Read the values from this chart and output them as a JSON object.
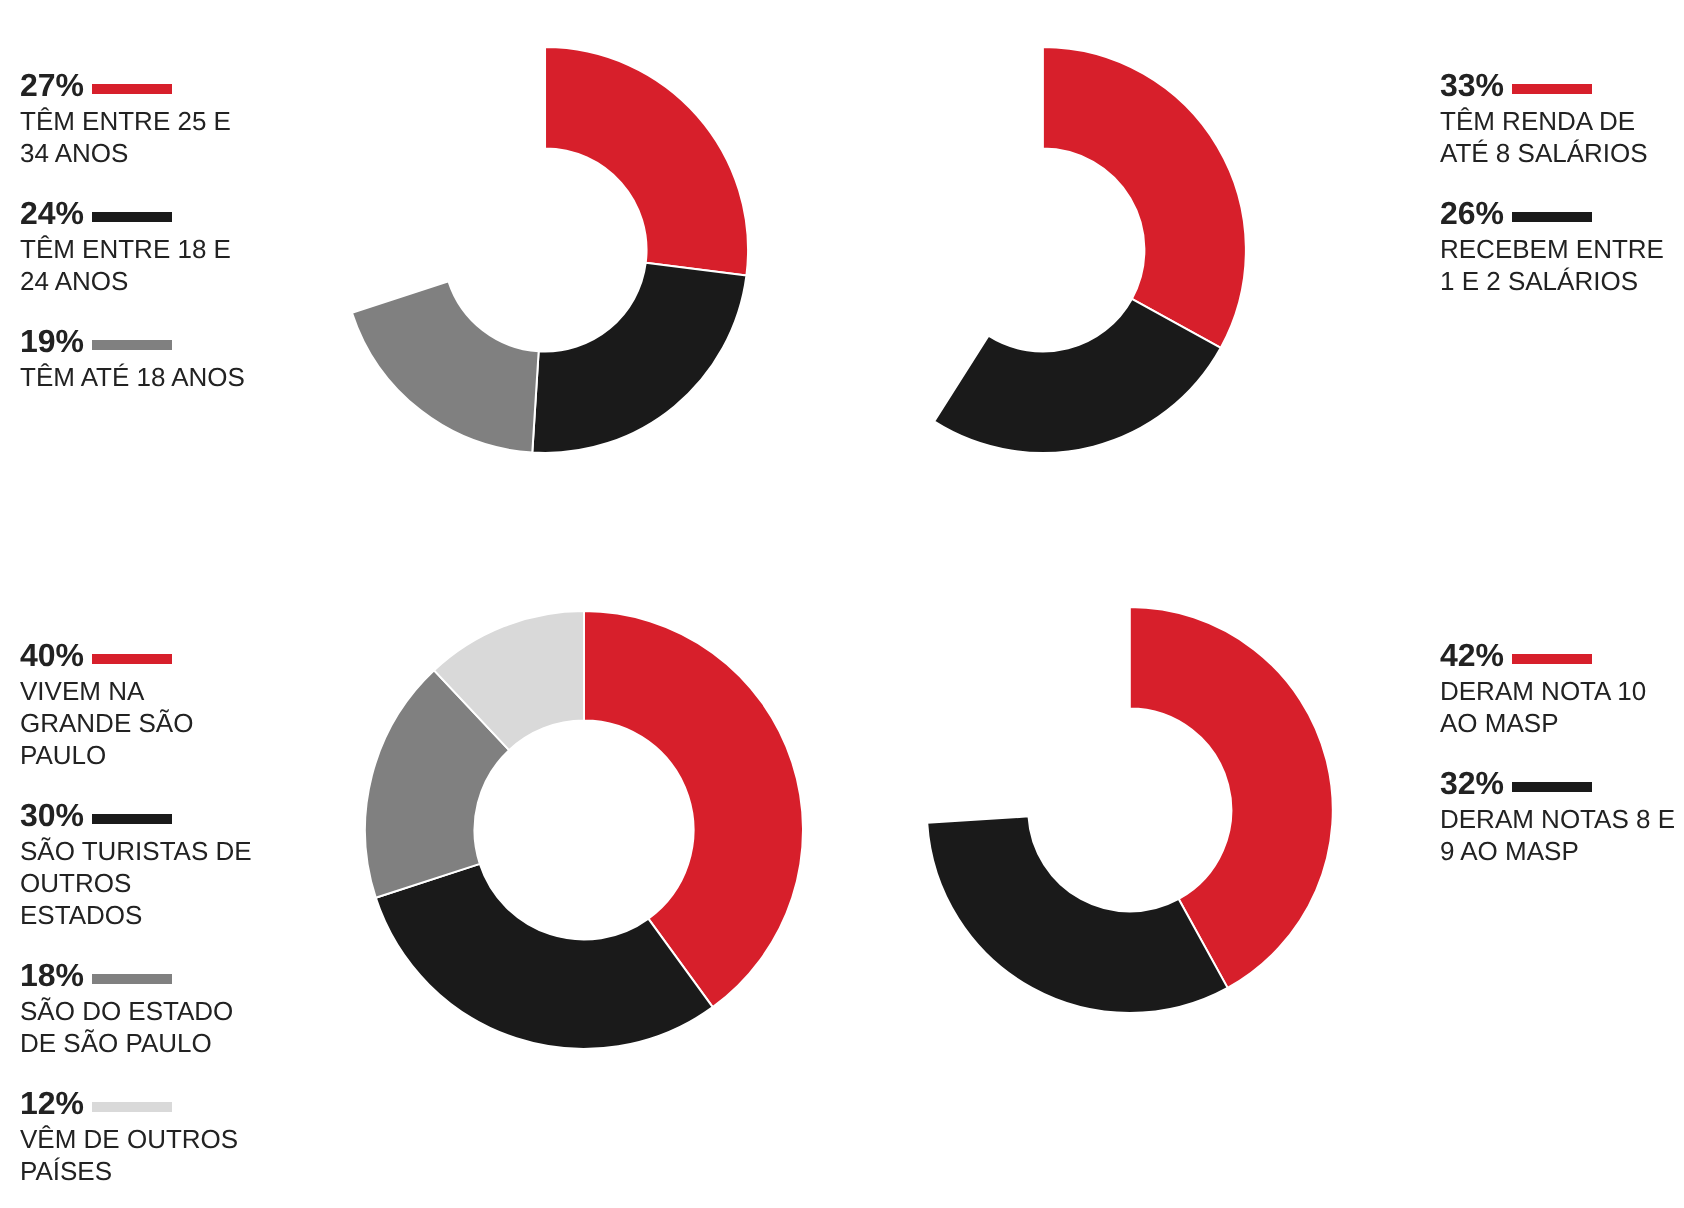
{
  "chart_data": [
    {
      "type": "donut",
      "categories": [
        "TÊM ENTRE 25 E 34 ANOS",
        "TÊM ENTRE 18 E 24 ANOS",
        "TÊM ATÉ 18 ANOS"
      ],
      "values": [
        27,
        24,
        19
      ],
      "value_labels": [
        "27%",
        "24%",
        "19%"
      ],
      "colors": [
        "#d71f2b",
        "#1a1a1a",
        "#808080"
      ],
      "legend": "left"
    },
    {
      "type": "donut",
      "categories": [
        "TÊM RENDA DE ATÉ 8 SALÁRIOS",
        "RECEBEM ENTRE 1 E 2 SALÁRIOS"
      ],
      "values": [
        33,
        26
      ],
      "value_labels": [
        "33%",
        "26%"
      ],
      "colors": [
        "#d71f2b",
        "#1a1a1a"
      ],
      "legend": "right"
    },
    {
      "type": "donut",
      "categories": [
        "VIVEM NA GRANDE SÃO PAULO",
        "SÃO TURISTAS DE OUTROS ESTADOS",
        "SÃO DO ESTADO DE SÃO PAULO",
        "VÊM DE OUTROS PAÍSES"
      ],
      "values": [
        40,
        30,
        18,
        12
      ],
      "value_labels": [
        "40%",
        "30%",
        "18%",
        "12%"
      ],
      "colors": [
        "#d71f2b",
        "#1a1a1a",
        "#808080",
        "#d9d9d9"
      ],
      "legend": "left"
    },
    {
      "type": "donut",
      "categories": [
        "DERAM NOTA 10 AO MASP",
        "DERAM NOTAS 8 E 9 AO MASP"
      ],
      "values": [
        42,
        32
      ],
      "value_labels": [
        "42%",
        "32%"
      ],
      "colors": [
        "#d71f2b",
        "#1a1a1a"
      ],
      "legend": "right"
    }
  ]
}
